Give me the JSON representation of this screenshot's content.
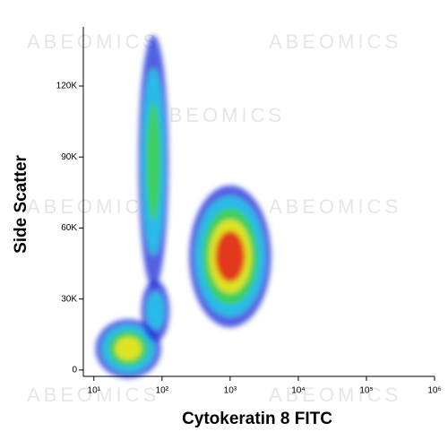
{
  "chart_data": {
    "type": "density",
    "x_label": "Cytokeratin 8 FITC",
    "y_label": "Side Scatter",
    "watermark": "ABEOMICS",
    "x_scale": "log",
    "xlim": [
      7,
      1000000
    ],
    "ylim": [
      -2700,
      145000
    ],
    "xticks": [
      {
        "value": 10,
        "label": "10¹"
      },
      {
        "value": 100,
        "label": "10²"
      },
      {
        "value": 1000,
        "label": "10³"
      },
      {
        "value": 10000,
        "label": "10⁴"
      },
      {
        "value": 100000,
        "label": "10⁵"
      },
      {
        "value": 1000000,
        "label": "10⁶"
      }
    ],
    "yticks": [
      0,
      {
        "value": 30000,
        "label": "30K"
      },
      {
        "value": 60000,
        "label": "60K"
      },
      {
        "value": 90000,
        "label": "90K"
      },
      {
        "value": 120000,
        "label": "120K"
      }
    ],
    "level_colors": [
      "#1c2bd8",
      "#25c6ea",
      "#3fd24c",
      "#f0e51e",
      "#e2261c"
    ],
    "populations": [
      {
        "x": 1000,
        "y": 48000,
        "x_low": 250,
        "x_high": 4000,
        "y_low": 22000,
        "y_high": 82000,
        "levels": 5
      },
      {
        "x": 75,
        "y": 88000,
        "x_low": 45,
        "x_high": 125,
        "y_low": 36000,
        "y_high": 143000,
        "levels": 3
      },
      {
        "x": 32,
        "y": 9000,
        "x_low": 12,
        "x_high": 110,
        "y_low": 0,
        "y_high": 25000,
        "levels": 4
      },
      {
        "x": 80,
        "y": 25000,
        "x_low": 50,
        "x_high": 130,
        "y_low": 12000,
        "y_high": 38000,
        "levels": 2
      }
    ]
  }
}
